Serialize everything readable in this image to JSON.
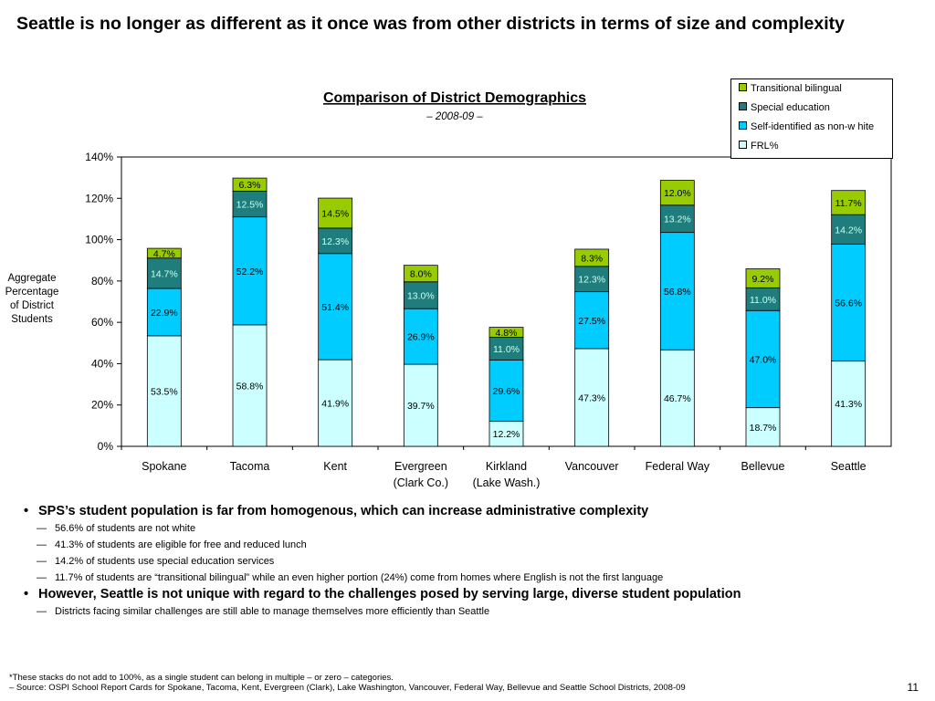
{
  "slide": {
    "title": "Seattle is no longer as different as it once was from other districts in terms of size and complexity",
    "page_number": "11"
  },
  "chart_data": {
    "type": "bar",
    "stacked": true,
    "title": "Comparison of District Demographics",
    "subtitle": "– 2008-09 –",
    "ylabel": "Aggregate Percentage of District Students",
    "ylim": [
      0,
      140
    ],
    "yticks": [
      0,
      20,
      40,
      60,
      80,
      100,
      120,
      140
    ],
    "ytick_labels": [
      "0%",
      "20%",
      "40%",
      "60%",
      "80%",
      "100%",
      "120%",
      "140%"
    ],
    "categories": [
      "Spokane",
      "Tacoma",
      "Kent",
      "Evergreen (Clark Co.)",
      "Kirkland (Lake Wash.)",
      "Vancouver",
      "Federal Way",
      "Bellevue",
      "Seattle"
    ],
    "category_lines": [
      [
        "Spokane"
      ],
      [
        "Tacoma"
      ],
      [
        "Kent"
      ],
      [
        "Evergreen",
        "(Clark Co.)"
      ],
      [
        "Kirkland",
        "(Lake Wash.)"
      ],
      [
        "Vancouver"
      ],
      [
        "Federal Way"
      ],
      [
        "Bellevue"
      ],
      [
        "Seattle"
      ]
    ],
    "legend_position": "top-right",
    "series": [
      {
        "name": "FRL%",
        "color": "#ccffff",
        "values": [
          53.5,
          58.8,
          41.9,
          39.7,
          12.2,
          47.3,
          46.7,
          18.7,
          41.3
        ]
      },
      {
        "name": "Self-identified as non-w hite",
        "color": "#00ccff",
        "values": [
          22.9,
          52.2,
          51.4,
          26.9,
          29.6,
          27.5,
          56.8,
          47.0,
          56.6
        ]
      },
      {
        "name": "Special education",
        "color": "#1f7d7d",
        "values": [
          14.7,
          12.5,
          12.3,
          13.0,
          11.0,
          12.3,
          13.2,
          11.0,
          14.2
        ]
      },
      {
        "name": "Transitional bilingual",
        "color": "#99cc00",
        "values": [
          4.7,
          6.3,
          14.5,
          8.0,
          4.8,
          8.3,
          12.0,
          9.2,
          11.7
        ]
      }
    ],
    "data_labels": [
      [
        "53.5%",
        "58.8%",
        "41.9%",
        "39.7%",
        "12.2%",
        "47.3%",
        "46.7%",
        "18.7%",
        "41.3%"
      ],
      [
        "22.9%",
        "52.2%",
        "51.4%",
        "26.9%",
        "29.6%",
        "27.5%",
        "56.8%",
        "47.0%",
        "56.6%"
      ],
      [
        "14.7%",
        "12.5%",
        "12.3%",
        "13.0%",
        "11.0%",
        "12.3%",
        "13.2%",
        "11.0%",
        "14.2%"
      ],
      [
        "4.7%",
        "6.3%",
        "14.5%",
        "8.0%",
        "4.8%",
        "8.3%",
        "12.0%",
        "9.2%",
        "11.7%"
      ]
    ]
  },
  "bullets": {
    "b1": "SPS’s student population is far from homogenous, which can increase administrative complexity",
    "b1_subs": [
      "56.6% of students are not white",
      "41.3% of students are eligible for free and reduced lunch",
      "14.2% of students use special education services",
      "11.7% of students are “transitional bilingual” while an even higher portion (24%) come from homes where English is not the first language"
    ],
    "b2": "However, Seattle is not unique with regard to the challenges posed by serving large, diverse student population",
    "b2_subs": [
      "Districts facing similar challenges are still able to manage themselves more efficiently than Seattle"
    ]
  },
  "footnote": {
    "line1": "*These stacks do not add to 100%, as a single student can belong in multiple – or zero – categories.",
    "line2": "– Source: OSPI School Report Cards for Spokane, Tacoma, Kent, Evergreen (Clark), Lake Washington, Vancouver, Federal Way, Bellevue and Seattle School Districts, 2008-09"
  }
}
